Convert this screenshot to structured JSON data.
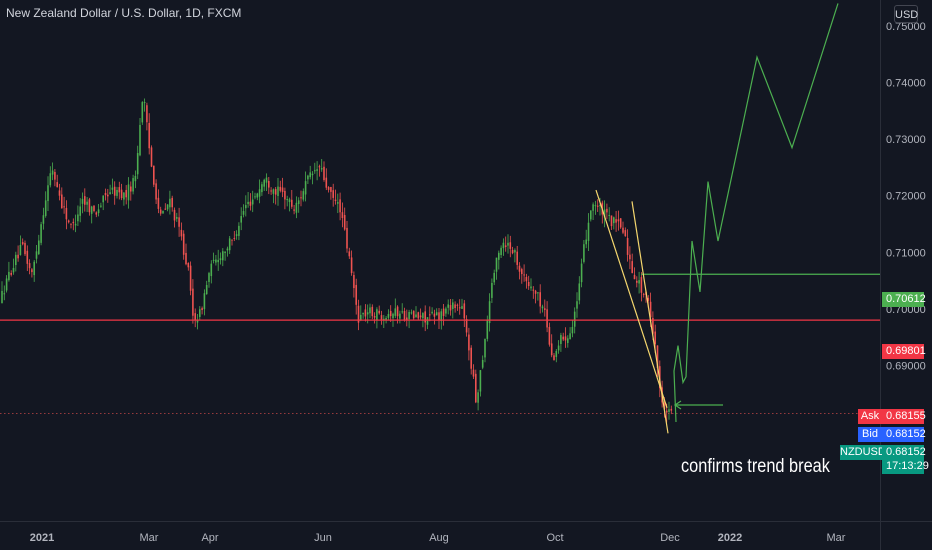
{
  "header": {
    "title": "New Zealand Dollar / U.S. Dollar, 1D, FXCM",
    "currency": "USD"
  },
  "chart_data": {
    "type": "candlestick",
    "symbol": "NZDUSD",
    "timeframe": "1D",
    "ylim": [
      0.6625,
      0.7546
    ],
    "y_ticks": [
      0.69,
      0.7,
      0.71,
      0.72,
      0.73,
      0.74,
      0.75
    ],
    "y_tick_labels": [
      "0.69000",
      "0.70000",
      "0.71000",
      "0.72000",
      "0.73000",
      "0.74000",
      "0.75000"
    ],
    "x_ticks": [
      {
        "label": "2021",
        "bold": true
      },
      {
        "label": "Mar",
        "bold": false
      },
      {
        "label": "Apr",
        "bold": false
      },
      {
        "label": "Jun",
        "bold": false
      },
      {
        "label": "Aug",
        "bold": false
      },
      {
        "label": "Oct",
        "bold": false
      },
      {
        "label": "Dec",
        "bold": false
      },
      {
        "label": "2022",
        "bold": true
      },
      {
        "label": "Mar",
        "bold": false
      }
    ],
    "price_levels": {
      "resistance": "0.70612",
      "support": "0.69801",
      "ask": "0.68155",
      "bid": "0.68152",
      "last": "0.68152",
      "countdown": "17:13:29"
    },
    "tag_labels": {
      "ask": "Ask",
      "bid": "Bid",
      "symbol": "NZDUSD"
    },
    "annotation": "confirms trend break",
    "grid": false
  },
  "colors": {
    "background": "#131722",
    "up": "#26a69a",
    "up_green": "#4caf50",
    "down": "#ef5350",
    "support_line": "#f23645",
    "resistance_line": "#4caf50",
    "projection": "#4caf50",
    "trendline": "#f5d76e",
    "ask_tag": "#f23645",
    "bid_tag": "#2962ff",
    "last_tag": "#089981"
  }
}
